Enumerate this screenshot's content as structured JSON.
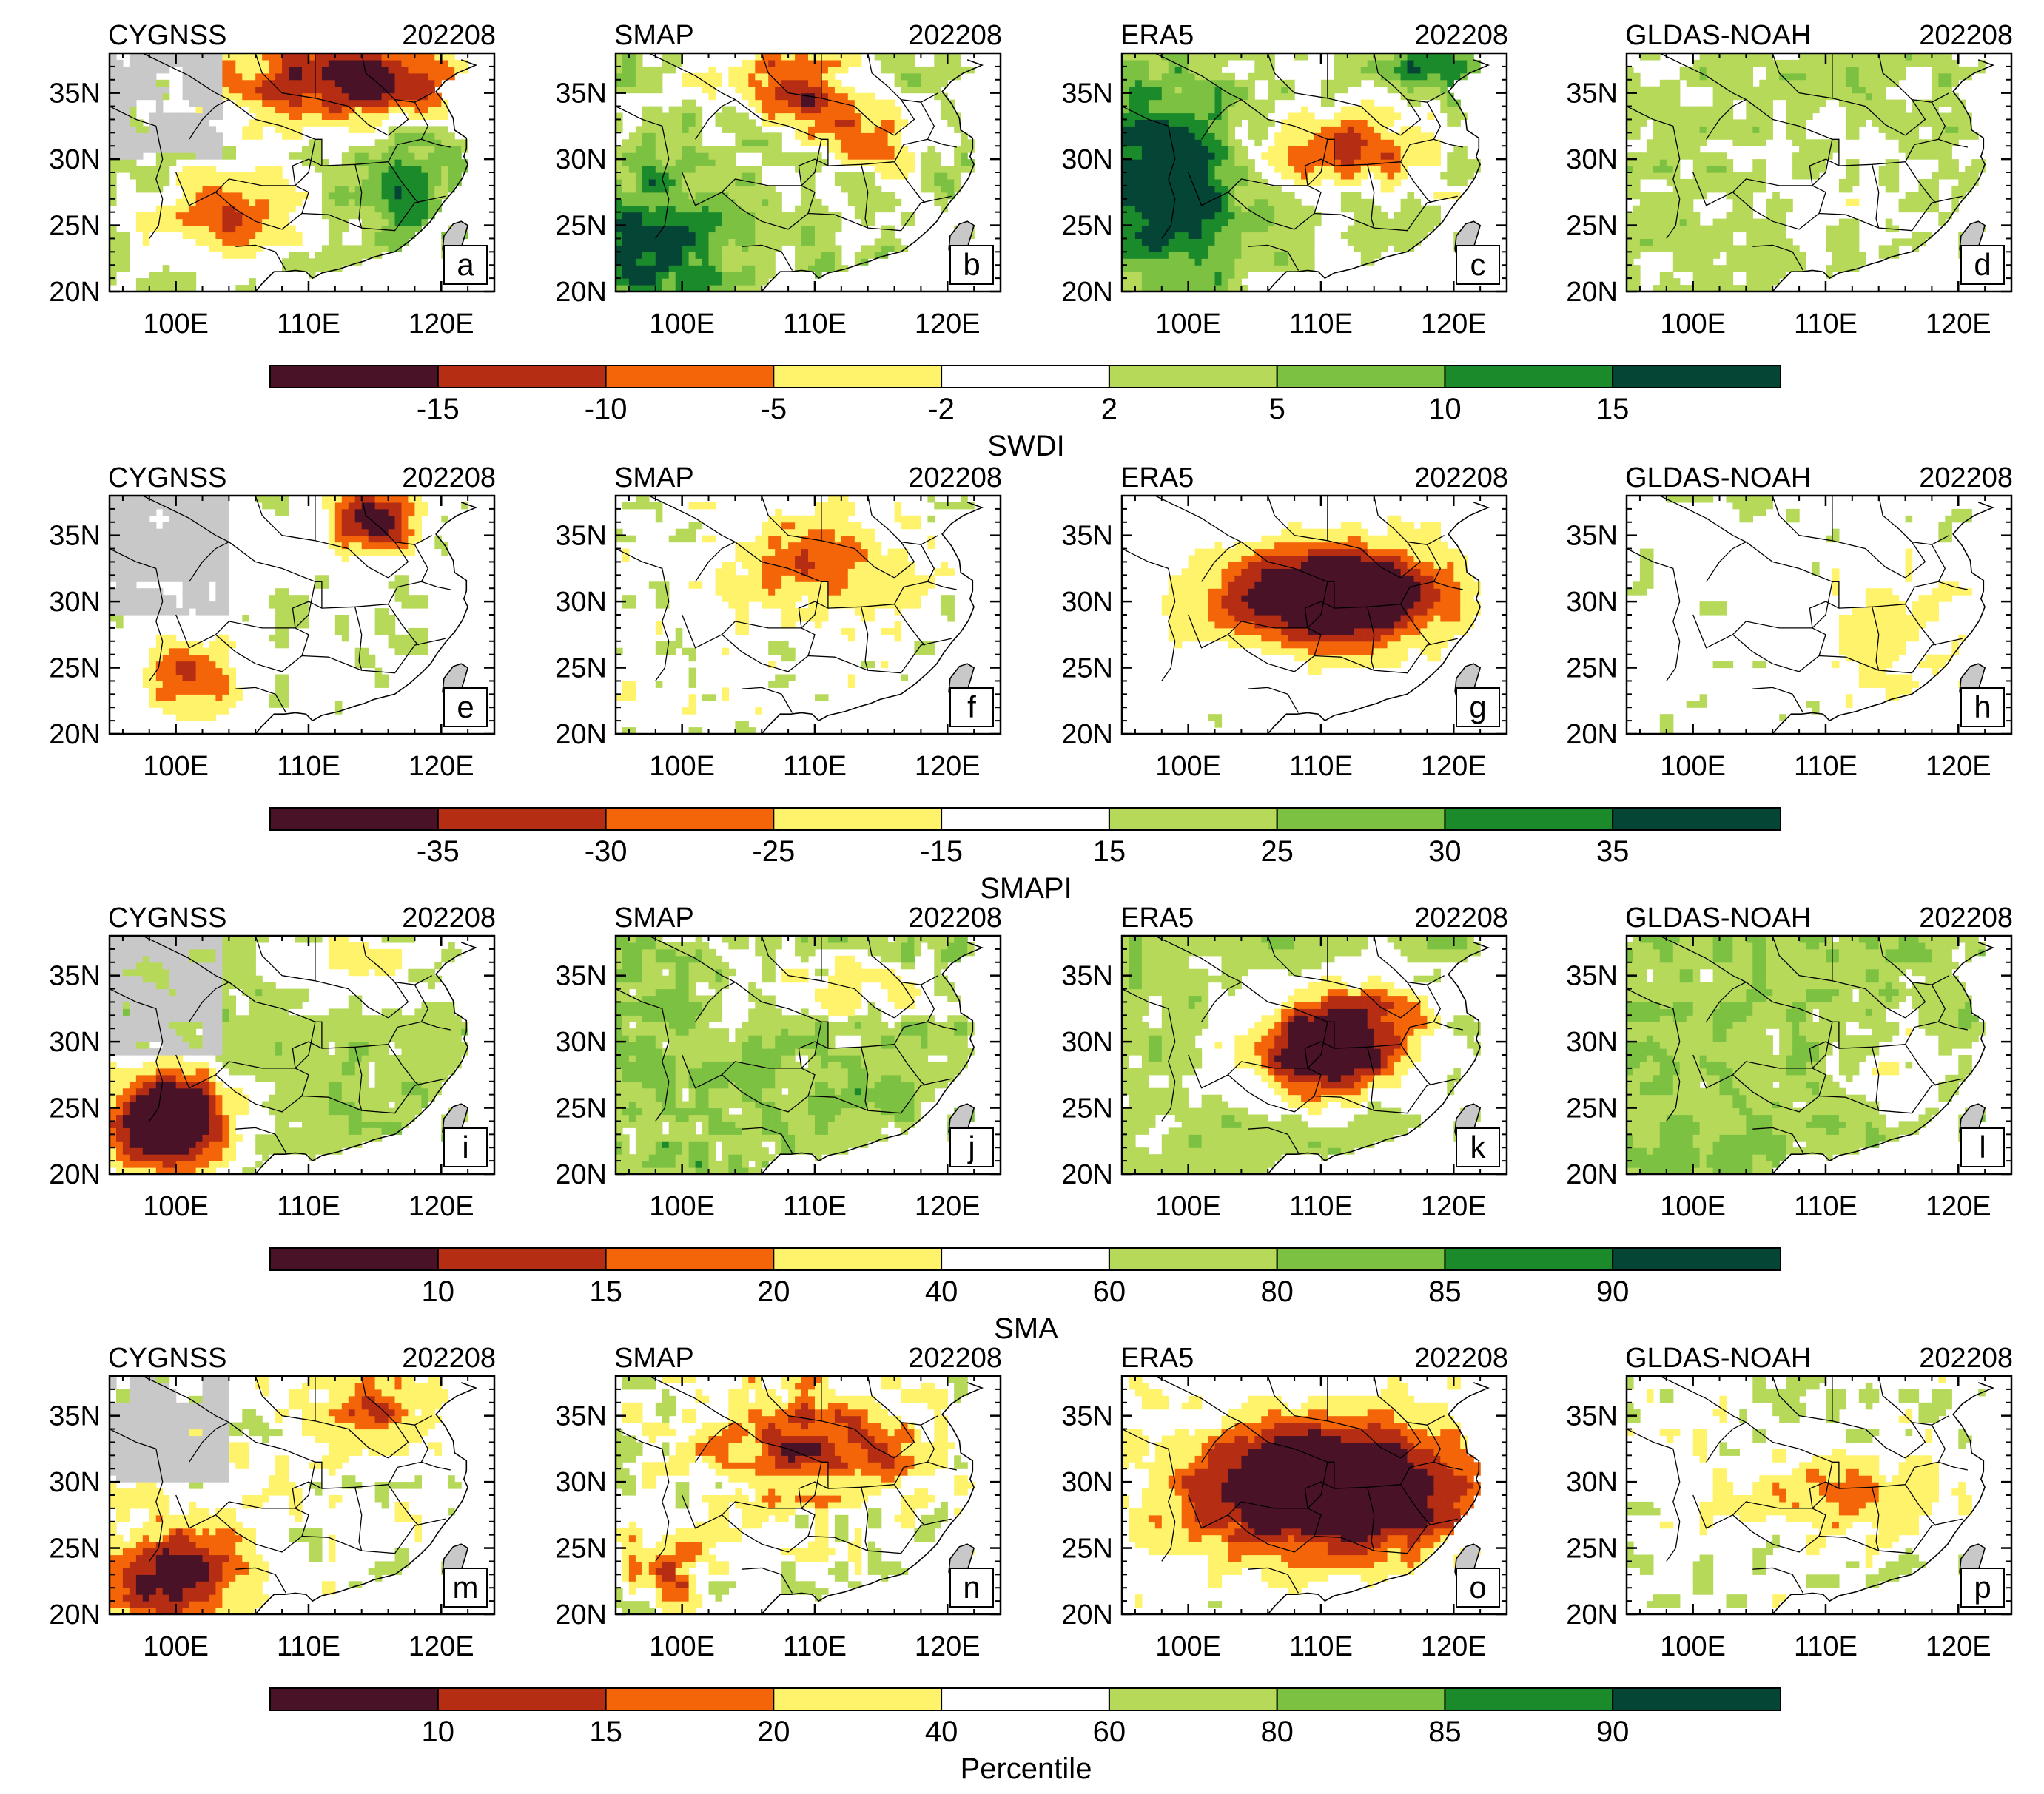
{
  "figure": {
    "month": "202208",
    "lat_ticks": [
      "20N",
      "25N",
      "30N",
      "35N"
    ],
    "lon_ticks": [
      "100E",
      "110E",
      "120E"
    ],
    "lat_range": [
      20,
      38
    ],
    "lon_range": [
      95,
      124
    ],
    "palette": [
      "#4a1226",
      "#b52d12",
      "#f46509",
      "#fef36b",
      "#ffffff",
      "#b6d95a",
      "#7dc142",
      "#1b8a2a",
      "#054536"
    ],
    "no_data_color": "#c8c8c8",
    "datasets": [
      "CYGNSS",
      "SMAP",
      "ERA5",
      "GLDAS-NOAH"
    ]
  },
  "rows": [
    {
      "index": "SWDI",
      "colorbar_labels": [
        "-15",
        "-10",
        "-5",
        "-2",
        "2",
        "5",
        "10",
        "15"
      ],
      "colorbar_title": "SWDI",
      "panels": [
        {
          "dataset": "CYGNSS",
          "date": "202208",
          "letter": "a"
        },
        {
          "dataset": "SMAP",
          "date": "202208",
          "letter": "b"
        },
        {
          "dataset": "ERA5",
          "date": "202208",
          "letter": "c"
        },
        {
          "dataset": "GLDAS-NOAH",
          "date": "202208",
          "letter": "d"
        }
      ]
    },
    {
      "index": "SMAPI",
      "colorbar_labels": [
        "-35",
        "-30",
        "-25",
        "-15",
        "15",
        "25",
        "30",
        "35"
      ],
      "colorbar_title": "SMAPI",
      "panels": [
        {
          "dataset": "CYGNSS",
          "date": "202208",
          "letter": "e"
        },
        {
          "dataset": "SMAP",
          "date": "202208",
          "letter": "f"
        },
        {
          "dataset": "ERA5",
          "date": "202208",
          "letter": "g"
        },
        {
          "dataset": "GLDAS-NOAH",
          "date": "202208",
          "letter": "h"
        }
      ]
    },
    {
      "index": "SMA",
      "colorbar_labels": [
        "10",
        "15",
        "20",
        "40",
        "60",
        "80",
        "85",
        "90"
      ],
      "colorbar_title": "SMA",
      "panels": [
        {
          "dataset": "CYGNSS",
          "date": "202208",
          "letter": "i"
        },
        {
          "dataset": "SMAP",
          "date": "202208",
          "letter": "j"
        },
        {
          "dataset": "ERA5",
          "date": "202208",
          "letter": "k"
        },
        {
          "dataset": "GLDAS-NOAH",
          "date": "202208",
          "letter": "l"
        }
      ]
    },
    {
      "index": "Percentile",
      "colorbar_labels": [
        "10",
        "15",
        "20",
        "40",
        "60",
        "80",
        "85",
        "90"
      ],
      "colorbar_title": "Percentile",
      "panels": [
        {
          "dataset": "CYGNSS",
          "date": "202208",
          "letter": "m"
        },
        {
          "dataset": "SMAP",
          "date": "202208",
          "letter": "n"
        },
        {
          "dataset": "ERA5",
          "date": "202208",
          "letter": "o"
        },
        {
          "dataset": "GLDAS-NOAH",
          "date": "202208",
          "letter": "p"
        }
      ]
    }
  ]
}
